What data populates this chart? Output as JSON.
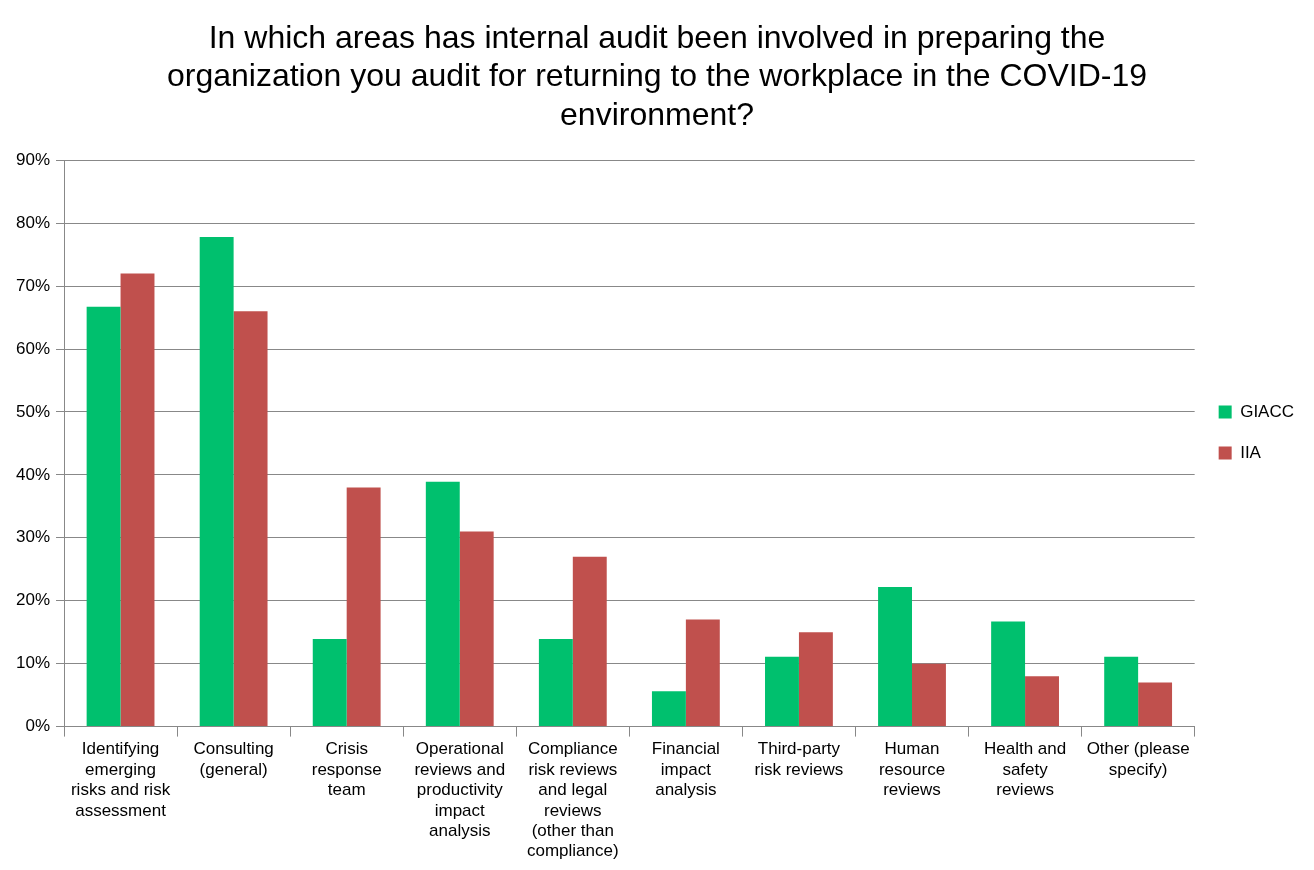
{
  "chart_data": {
    "type": "bar",
    "title": "In which areas has internal audit been involved in preparing the organization you audit for returning to the workplace in the COVID-19 environment?",
    "categories": [
      "Identifying emerging risks and risk assessment",
      "Consulting (general)",
      "Crisis response team",
      "Operational reviews and productivity impact analysis",
      "Compliance risk reviews and legal reviews (other than compliance)",
      "Financial impact analysis",
      "Third-party risk reviews",
      "Human resource reviews",
      "Health and safety reviews",
      "Other (please specify)"
    ],
    "series": [
      {
        "name": "GIACC",
        "color": "#00c06e",
        "values": [
          66.7,
          77.8,
          13.9,
          38.9,
          13.9,
          5.6,
          11.1,
          22.2,
          16.7,
          11.1
        ]
      },
      {
        "name": "IIA",
        "color": "#c0504d",
        "values": [
          72,
          66,
          38,
          31,
          27,
          17,
          15,
          10,
          8,
          7
        ]
      }
    ],
    "ylim": [
      0,
      90
    ],
    "yticks": [
      {
        "value": 0,
        "label": "0%"
      },
      {
        "value": 10,
        "label": "10%"
      },
      {
        "value": 20,
        "label": "20%"
      },
      {
        "value": 30,
        "label": "30%"
      },
      {
        "value": 40,
        "label": "40%"
      },
      {
        "value": 50,
        "label": "50%"
      },
      {
        "value": 60,
        "label": "60%"
      },
      {
        "value": 70,
        "label": "70%"
      },
      {
        "value": 80,
        "label": "80%"
      },
      {
        "value": 90,
        "label": "90%"
      }
    ],
    "grid": "y",
    "legend": "right"
  }
}
